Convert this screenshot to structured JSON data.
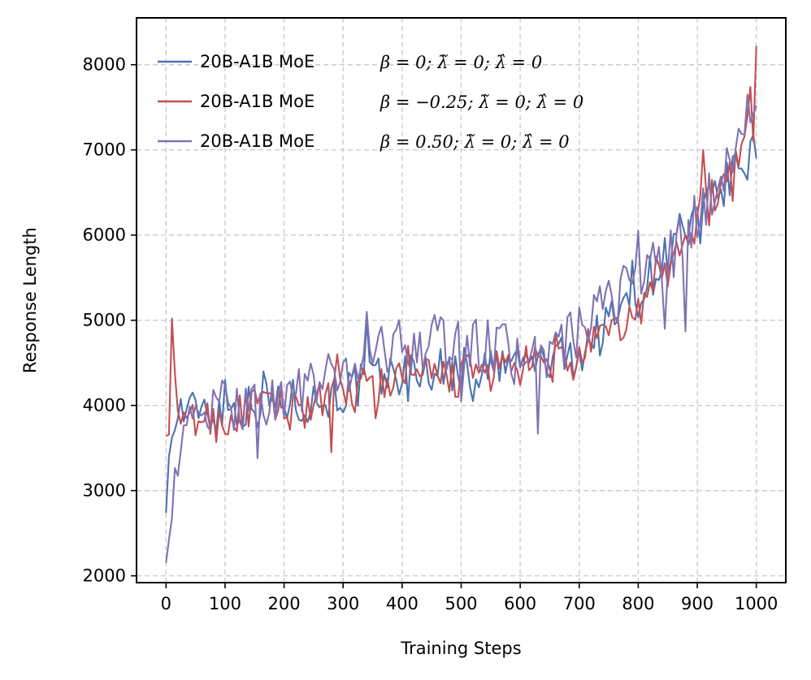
{
  "chart_data": {
    "type": "line",
    "title": "",
    "xlabel": "Training Steps",
    "ylabel": "Response Length",
    "xlim": [
      -50,
      1050
    ],
    "ylim": [
      1920,
      8550
    ],
    "xticks": [
      0,
      100,
      200,
      300,
      400,
      500,
      600,
      700,
      800,
      900,
      1000
    ],
    "yticks": [
      2000,
      3000,
      4000,
      5000,
      6000,
      7000,
      8000
    ],
    "grid": true,
    "legend_position": "top-left",
    "series": [
      {
        "name": "20B-A1B MoE",
        "legend_math": "β = 0;  λ̃ = 0;  λ̂ = 0",
        "color": "#4c72b0",
        "anchors": [
          [
            0,
            2780
          ],
          [
            10,
            3600
          ],
          [
            25,
            3980
          ],
          [
            40,
            3900
          ],
          [
            60,
            4050
          ],
          [
            80,
            3900
          ],
          [
            100,
            3950
          ],
          [
            150,
            4000
          ],
          [
            200,
            4050
          ],
          [
            250,
            4050
          ],
          [
            300,
            4150
          ],
          [
            350,
            4300
          ],
          [
            400,
            4380
          ],
          [
            450,
            4420
          ],
          [
            500,
            4420
          ],
          [
            550,
            4420
          ],
          [
            600,
            4500
          ],
          [
            650,
            4500
          ],
          [
            700,
            4600
          ],
          [
            750,
            4950
          ],
          [
            800,
            5300
          ],
          [
            850,
            5800
          ],
          [
            900,
            6150
          ],
          [
            950,
            6600
          ],
          [
            975,
            6850
          ],
          [
            1000,
            7000
          ]
        ],
        "noise": 170,
        "spikes": [
          [
            5,
            3400
          ],
          [
            100,
            4300
          ],
          [
            165,
            4400
          ],
          [
            340,
            5000
          ],
          [
            410,
            4050
          ],
          [
            520,
            4050
          ],
          [
            590,
            4600
          ],
          [
            660,
            4700
          ],
          [
            745,
            5150
          ],
          [
            790,
            5700
          ],
          [
            870,
            6250
          ],
          [
            905,
            5900
          ],
          [
            985,
            6650
          ],
          [
            990,
            7100
          ],
          [
            1000,
            6900
          ]
        ]
      },
      {
        "name": "20B-A1B MoE",
        "legend_math": "β = −0.25;  λ̃ = 0;  λ̂ = 0",
        "color": "#c44e52",
        "anchors": [
          [
            0,
            3680
          ],
          [
            5,
            3620
          ],
          [
            10,
            5020
          ],
          [
            15,
            4400
          ],
          [
            20,
            3900
          ],
          [
            30,
            3700
          ],
          [
            50,
            3850
          ],
          [
            100,
            3800
          ],
          [
            150,
            4000
          ],
          [
            200,
            3950
          ],
          [
            250,
            4000
          ],
          [
            300,
            4100
          ],
          [
            350,
            4250
          ],
          [
            400,
            4300
          ],
          [
            450,
            4300
          ],
          [
            500,
            4350
          ],
          [
            550,
            4400
          ],
          [
            600,
            4450
          ],
          [
            650,
            4450
          ],
          [
            700,
            4600
          ],
          [
            750,
            4800
          ],
          [
            800,
            5100
          ],
          [
            850,
            5600
          ],
          [
            900,
            6200
          ],
          [
            950,
            6600
          ],
          [
            980,
            7200
          ],
          [
            1000,
            8200
          ]
        ],
        "noise": 160,
        "spikes": [
          [
            10,
            5020
          ],
          [
            280,
            3450
          ],
          [
            290,
            4600
          ],
          [
            355,
            3850
          ],
          [
            410,
            4700
          ],
          [
            460,
            4350
          ],
          [
            585,
            4400
          ],
          [
            660,
            4850
          ],
          [
            690,
            4300
          ],
          [
            740,
            4950
          ],
          [
            830,
            5750
          ],
          [
            912,
            7000
          ],
          [
            960,
            6400
          ],
          [
            985,
            7400
          ],
          [
            995,
            7100
          ],
          [
            1000,
            8220
          ]
        ]
      },
      {
        "name": "20B-A1B MoE",
        "legend_math": "β = 0.50;  λ̃ = 0;  λ̂ = 0",
        "color": "#8172b2",
        "anchors": [
          [
            0,
            2200
          ],
          [
            10,
            2700
          ],
          [
            15,
            3250
          ],
          [
            25,
            3400
          ],
          [
            40,
            3750
          ],
          [
            60,
            4000
          ],
          [
            80,
            3900
          ],
          [
            100,
            4000
          ],
          [
            150,
            4050
          ],
          [
            200,
            4100
          ],
          [
            250,
            4250
          ],
          [
            300,
            4350
          ],
          [
            350,
            4650
          ],
          [
            400,
            4700
          ],
          [
            450,
            4750
          ],
          [
            500,
            4700
          ],
          [
            550,
            4700
          ],
          [
            600,
            4600
          ],
          [
            650,
            4600
          ],
          [
            700,
            4850
          ],
          [
            750,
            5150
          ],
          [
            800,
            5600
          ],
          [
            850,
            5700
          ],
          [
            900,
            6200
          ],
          [
            950,
            6800
          ],
          [
            975,
            7200
          ],
          [
            1000,
            7500
          ]
        ],
        "noise": 200,
        "spikes": [
          [
            155,
            3380
          ],
          [
            340,
            5100
          ],
          [
            470,
            5000
          ],
          [
            500,
            4050
          ],
          [
            545,
            5000
          ],
          [
            590,
            4250
          ],
          [
            630,
            3670
          ],
          [
            670,
            4950
          ],
          [
            735,
            5400
          ],
          [
            800,
            6050
          ],
          [
            845,
            4900
          ],
          [
            880,
            4870
          ],
          [
            910,
            6550
          ],
          [
            935,
            6550
          ],
          [
            970,
            7250
          ],
          [
            985,
            7650
          ],
          [
            1000,
            7520
          ]
        ]
      }
    ]
  }
}
